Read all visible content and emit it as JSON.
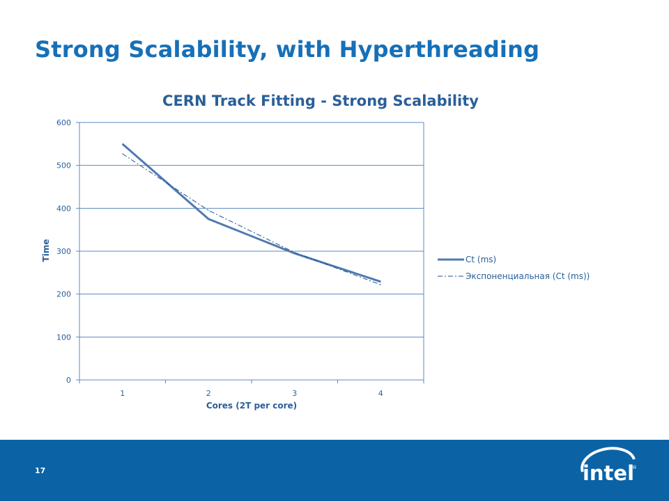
{
  "slide": {
    "title": "Strong Scalability, with Hyperthreading",
    "page_number": "17",
    "logo_text": "intel",
    "footer_color": "#0b63a6"
  },
  "chart_data": {
    "type": "line",
    "title": "CERN Track Fitting - Strong Scalability",
    "xlabel": "Cores (2T per core)",
    "ylabel": "Time",
    "categories": [
      "1",
      "2",
      "3",
      "4"
    ],
    "ylim": [
      0,
      600
    ],
    "yticks": [
      0,
      100,
      200,
      300,
      400,
      500,
      600
    ],
    "grid": true,
    "legend_position": "right",
    "series": [
      {
        "name": "Ct (ms)",
        "values": [
          550,
          375,
          295,
          229
        ],
        "color": "#4f79b0",
        "style": "solid"
      },
      {
        "name": "Экспоненциальная  (Ct (ms))",
        "values": [
          527,
          395,
          297,
          222
        ],
        "color": "#1f4e8c",
        "style": "dash-dot"
      }
    ]
  }
}
